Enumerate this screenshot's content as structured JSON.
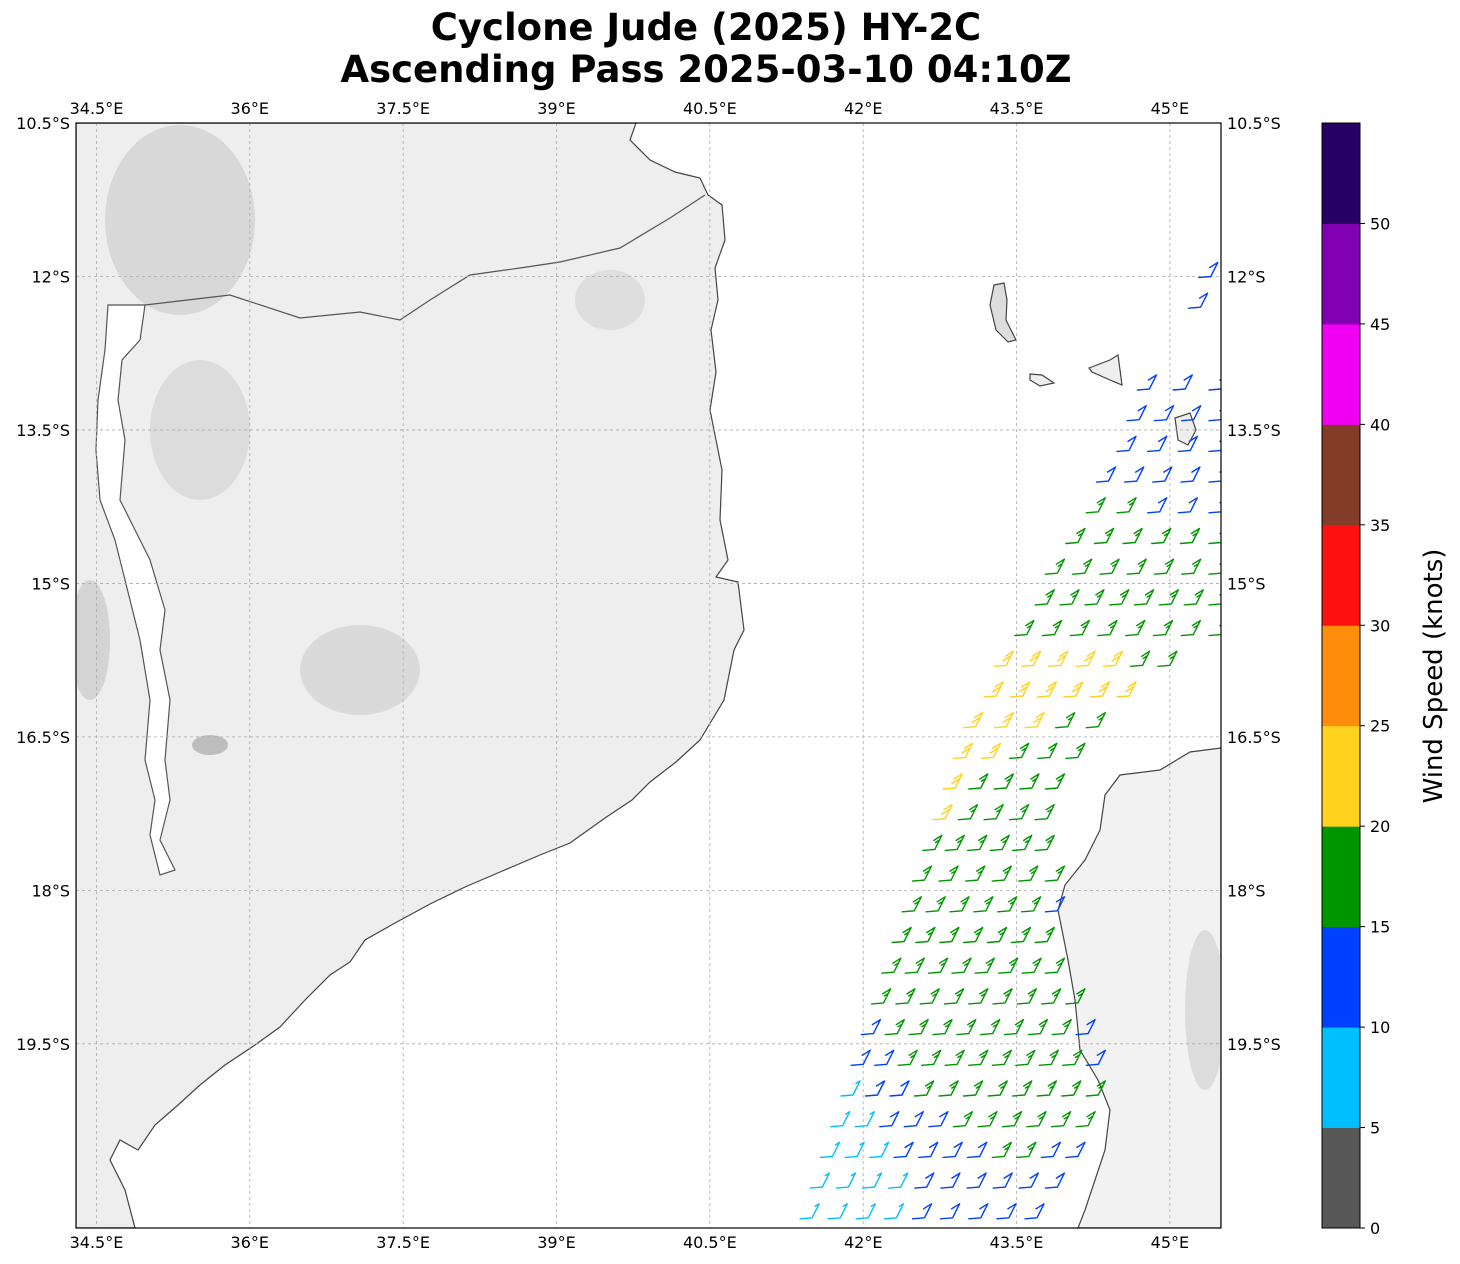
{
  "title": {
    "line1": "Cyclone Jude (2025) HY-2C",
    "line2": "Ascending Pass 2025-03-10 04:10Z"
  },
  "map": {
    "lon_range": [
      34.3,
      45.5
    ],
    "lat_range": [
      -21.3,
      -10.5
    ],
    "lon_ticks": [
      {
        "value": 34.5,
        "label": "34.5°E"
      },
      {
        "value": 36.0,
        "label": "36°E"
      },
      {
        "value": 37.5,
        "label": "37.5°E"
      },
      {
        "value": 39.0,
        "label": "39°E"
      },
      {
        "value": 40.5,
        "label": "40.5°E"
      },
      {
        "value": 42.0,
        "label": "42°E"
      },
      {
        "value": 43.5,
        "label": "43.5°E"
      },
      {
        "value": 45.0,
        "label": "45°E"
      }
    ],
    "lat_ticks": [
      {
        "value": -10.5,
        "label": "10.5°S"
      },
      {
        "value": -12.0,
        "label": "12°S"
      },
      {
        "value": -13.5,
        "label": "13.5°S"
      },
      {
        "value": -15.0,
        "label": "15°S"
      },
      {
        "value": -16.5,
        "label": "16.5°S"
      },
      {
        "value": -18.0,
        "label": "18°S"
      },
      {
        "value": -19.5,
        "label": "19.5°S"
      }
    ],
    "grid": true,
    "land_color": "#eeeeee",
    "ocean_color": "#ffffff",
    "coast_color": "#444444"
  },
  "colorbar": {
    "label": "Wind Speed (knots)",
    "ticks": [
      "0",
      "5",
      "10",
      "15",
      "20",
      "25",
      "30",
      "35",
      "40",
      "45",
      "50"
    ],
    "bins": [
      {
        "min": 0,
        "color": "#585858"
      },
      {
        "min": 5,
        "color": "#00bfff"
      },
      {
        "min": 10,
        "color": "#0040ff"
      },
      {
        "min": 15,
        "color": "#009600"
      },
      {
        "min": 20,
        "color": "#ffd21e"
      },
      {
        "min": 25,
        "color": "#ff8c0a"
      },
      {
        "min": 30,
        "color": "#ff1010"
      },
      {
        "min": 35,
        "color": "#823c28"
      },
      {
        "min": 40,
        "color": "#f000f0"
      },
      {
        "min": 45,
        "color": "#8200b4"
      },
      {
        "min": 50,
        "color": "#280064"
      }
    ]
  },
  "wind_swath": {
    "instrument": "HY-2C",
    "rows": [
      {
        "lat": -12.0,
        "lon_start": 45.4,
        "lon_end": 45.5,
        "speeds": [
          12
        ]
      },
      {
        "lat": -12.3,
        "lon_start": 45.3,
        "lon_end": 45.5,
        "speeds": [
          12
        ]
      },
      {
        "lat": -13.1,
        "lon_start": 44.8,
        "lon_end": 45.5,
        "speeds": [
          12,
          12,
          12
        ]
      },
      {
        "lat": -13.4,
        "lon_start": 44.7,
        "lon_end": 45.5,
        "speeds": [
          12,
          12,
          12,
          13
        ]
      },
      {
        "lat": -13.7,
        "lon_start": 44.6,
        "lon_end": 45.5,
        "speeds": [
          12,
          13,
          12,
          13
        ]
      },
      {
        "lat": -14.0,
        "lon_start": 44.4,
        "lon_end": 45.5,
        "speeds": [
          12,
          12,
          13,
          13,
          13
        ]
      },
      {
        "lat": -14.3,
        "lon_start": 44.3,
        "lon_end": 45.5,
        "speeds": [
          17,
          17,
          13,
          13,
          13
        ]
      },
      {
        "lat": -14.6,
        "lon_start": 44.1,
        "lon_end": 45.5,
        "speeds": [
          17,
          17,
          17,
          17,
          18,
          17
        ]
      },
      {
        "lat": -14.9,
        "lon_start": 43.9,
        "lon_end": 45.5,
        "speeds": [
          17,
          17,
          17,
          18,
          18,
          17,
          17
        ]
      },
      {
        "lat": -15.2,
        "lon_start": 43.8,
        "lon_end": 45.5,
        "speeds": [
          17,
          17,
          18,
          18,
          18,
          17,
          17,
          18
        ]
      },
      {
        "lat": -15.5,
        "lon_start": 43.6,
        "lon_end": 45.5,
        "speeds": [
          17,
          17,
          18,
          18,
          18,
          18,
          17,
          17
        ]
      },
      {
        "lat": -15.8,
        "lon_start": 43.4,
        "lon_end": 45.0,
        "speeds": [
          22,
          22,
          22,
          22,
          22,
          18,
          18
        ]
      },
      {
        "lat": -16.1,
        "lon_start": 43.3,
        "lon_end": 44.6,
        "speeds": [
          22,
          22,
          22,
          22,
          22,
          22
        ]
      },
      {
        "lat": -16.4,
        "lon_start": 43.1,
        "lon_end": 44.3,
        "speeds": [
          22,
          22,
          22,
          18,
          18
        ]
      },
      {
        "lat": -16.7,
        "lon_start": 43.0,
        "lon_end": 44.1,
        "speeds": [
          22,
          22,
          18,
          18,
          18
        ]
      },
      {
        "lat": -17.0,
        "lon_start": 42.9,
        "lon_end": 43.9,
        "speeds": [
          22,
          18,
          18,
          18,
          18
        ]
      },
      {
        "lat": -17.3,
        "lon_start": 42.8,
        "lon_end": 43.8,
        "speeds": [
          22,
          18,
          18,
          18,
          18
        ]
      },
      {
        "lat": -17.6,
        "lon_start": 42.7,
        "lon_end": 43.8,
        "speeds": [
          17,
          17,
          17,
          17,
          17,
          17
        ]
      },
      {
        "lat": -17.9,
        "lon_start": 42.6,
        "lon_end": 43.9,
        "speeds": [
          17,
          17,
          17,
          17,
          17,
          17
        ]
      },
      {
        "lat": -18.2,
        "lon_start": 42.5,
        "lon_end": 43.9,
        "speeds": [
          17,
          17,
          17,
          17,
          17,
          17,
          12
        ]
      },
      {
        "lat": -18.5,
        "lon_start": 42.4,
        "lon_end": 43.8,
        "speeds": [
          17,
          17,
          17,
          17,
          17,
          17,
          17
        ]
      },
      {
        "lat": -18.8,
        "lon_start": 42.3,
        "lon_end": 43.9,
        "speeds": [
          17,
          17,
          17,
          17,
          17,
          17,
          17,
          17
        ]
      },
      {
        "lat": -19.1,
        "lon_start": 42.2,
        "lon_end": 44.1,
        "speeds": [
          17,
          17,
          17,
          17,
          17,
          17,
          17,
          17,
          17
        ]
      },
      {
        "lat": -19.4,
        "lon_start": 42.1,
        "lon_end": 44.2,
        "speeds": [
          12,
          17,
          17,
          17,
          17,
          17,
          17,
          17,
          17,
          12
        ]
      },
      {
        "lat": -19.7,
        "lon_start": 42.0,
        "lon_end": 44.3,
        "speeds": [
          12,
          12,
          17,
          17,
          17,
          17,
          17,
          17,
          17,
          17,
          12
        ]
      },
      {
        "lat": -20.0,
        "lon_start": 41.9,
        "lon_end": 44.3,
        "speeds": [
          7,
          12,
          12,
          17,
          17,
          17,
          17,
          17,
          17,
          17,
          17
        ]
      },
      {
        "lat": -20.3,
        "lon_start": 41.8,
        "lon_end": 44.2,
        "speeds": [
          7,
          7,
          12,
          12,
          12,
          17,
          17,
          17,
          17,
          17,
          17
        ]
      },
      {
        "lat": -20.6,
        "lon_start": 41.7,
        "lon_end": 44.1,
        "speeds": [
          7,
          7,
          7,
          12,
          12,
          12,
          12,
          17,
          17,
          12,
          12
        ]
      },
      {
        "lat": -20.9,
        "lon_start": 41.6,
        "lon_end": 43.9,
        "speeds": [
          7,
          7,
          7,
          7,
          12,
          12,
          12,
          12,
          12,
          12
        ]
      },
      {
        "lat": -21.2,
        "lon_start": 41.5,
        "lon_end": 43.7,
        "speeds": [
          7,
          7,
          7,
          7,
          12,
          12,
          12,
          12,
          12
        ]
      }
    ]
  }
}
